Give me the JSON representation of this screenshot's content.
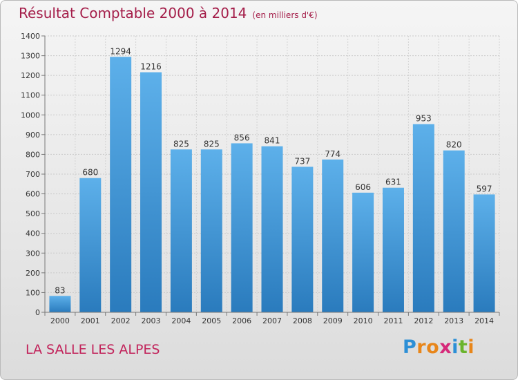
{
  "header": {
    "title": "Résultat Comptable 2000 à 2014",
    "subtitle": "(en milliers d'€)"
  },
  "footer": {
    "town": "LA SALLE LES ALPES",
    "logo_letters": [
      "P",
      "r",
      "o",
      "x",
      "i",
      "t",
      "i"
    ],
    "logo_colors": [
      "#2c8fd6",
      "#e8861a",
      "#e8861a",
      "#d62a7a",
      "#2c8fd6",
      "#6ab42d",
      "#e8861a"
    ]
  },
  "colors": {
    "bar_top": "#5db0ea",
    "bar_bottom": "#2a7bbd",
    "title": "#a41d49"
  },
  "chart_data": {
    "type": "bar",
    "categories": [
      "2000",
      "2001",
      "2002",
      "2003",
      "2004",
      "2005",
      "2006",
      "2007",
      "2008",
      "2009",
      "2010",
      "2011",
      "2012",
      "2013",
      "2014"
    ],
    "values": [
      83,
      680,
      1294,
      1216,
      825,
      825,
      856,
      841,
      737,
      774,
      606,
      631,
      953,
      820,
      597
    ],
    "title": "Résultat Comptable 2000 à 2014",
    "xlabel": "",
    "ylabel": "",
    "ylim": [
      0,
      1400
    ],
    "yticks": [
      0,
      100,
      200,
      300,
      400,
      500,
      600,
      700,
      800,
      900,
      1000,
      1100,
      1200,
      1300,
      1400
    ],
    "grid": true
  }
}
